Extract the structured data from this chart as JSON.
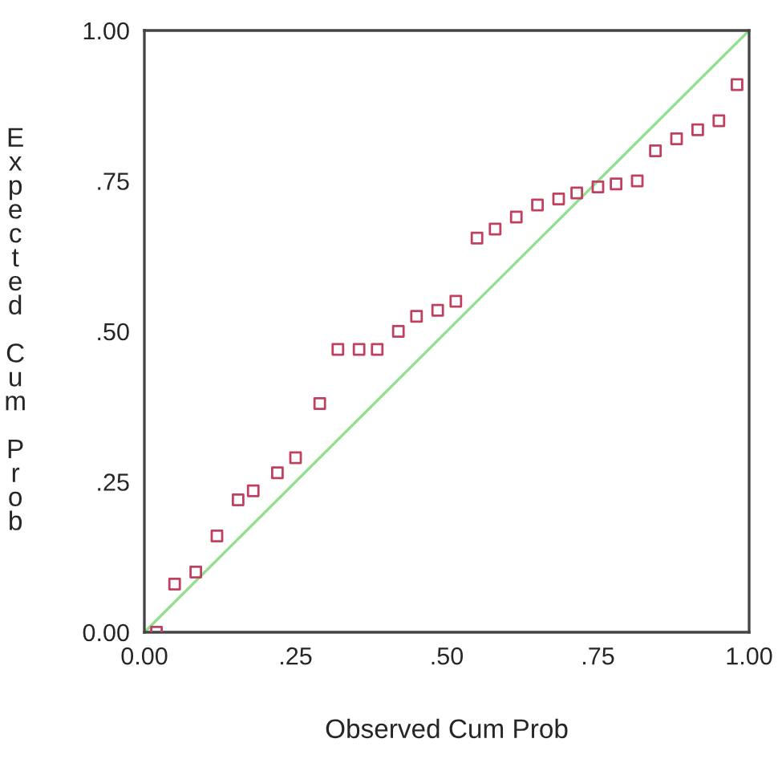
{
  "chart_data": {
    "type": "scatter",
    "xlabel": "Observed Cum Prob",
    "ylabel": "Expected Cum Prob",
    "xlim": [
      0,
      1
    ],
    "ylim": [
      0,
      1
    ],
    "xticks": [
      {
        "value": 0,
        "label": "0.00"
      },
      {
        "value": 0.25,
        "label": ".25"
      },
      {
        "value": 0.5,
        "label": ".50"
      },
      {
        "value": 0.75,
        "label": ".75"
      },
      {
        "value": 1,
        "label": "1.00"
      }
    ],
    "yticks": [
      {
        "value": 0,
        "label": "0.00"
      },
      {
        "value": 0.25,
        "label": ".25"
      },
      {
        "value": 0.5,
        "label": ".50"
      },
      {
        "value": 0.75,
        "label": ".75"
      },
      {
        "value": 1,
        "label": "1.00"
      }
    ],
    "grid": false,
    "legend": false,
    "series": [
      {
        "marker": "square",
        "color": "#c04060",
        "x": [
          0.02,
          0.05,
          0.085,
          0.12,
          0.155,
          0.18,
          0.22,
          0.25,
          0.29,
          0.32,
          0.355,
          0.385,
          0.42,
          0.45,
          0.485,
          0.515,
          0.55,
          0.58,
          0.615,
          0.65,
          0.685,
          0.715,
          0.75,
          0.78,
          0.815,
          0.845,
          0.88,
          0.915,
          0.95,
          0.98
        ],
        "values": [
          0.0,
          0.08,
          0.1,
          0.16,
          0.22,
          0.235,
          0.265,
          0.29,
          0.38,
          0.47,
          0.47,
          0.47,
          0.5,
          0.525,
          0.535,
          0.55,
          0.655,
          0.67,
          0.69,
          0.71,
          0.72,
          0.73,
          0.74,
          0.745,
          0.75,
          0.8,
          0.82,
          0.835,
          0.85,
          0.91
        ]
      },
      {
        "type": "line",
        "color": "#90e090",
        "x": [
          0,
          1
        ],
        "values": [
          0,
          1
        ]
      }
    ]
  }
}
